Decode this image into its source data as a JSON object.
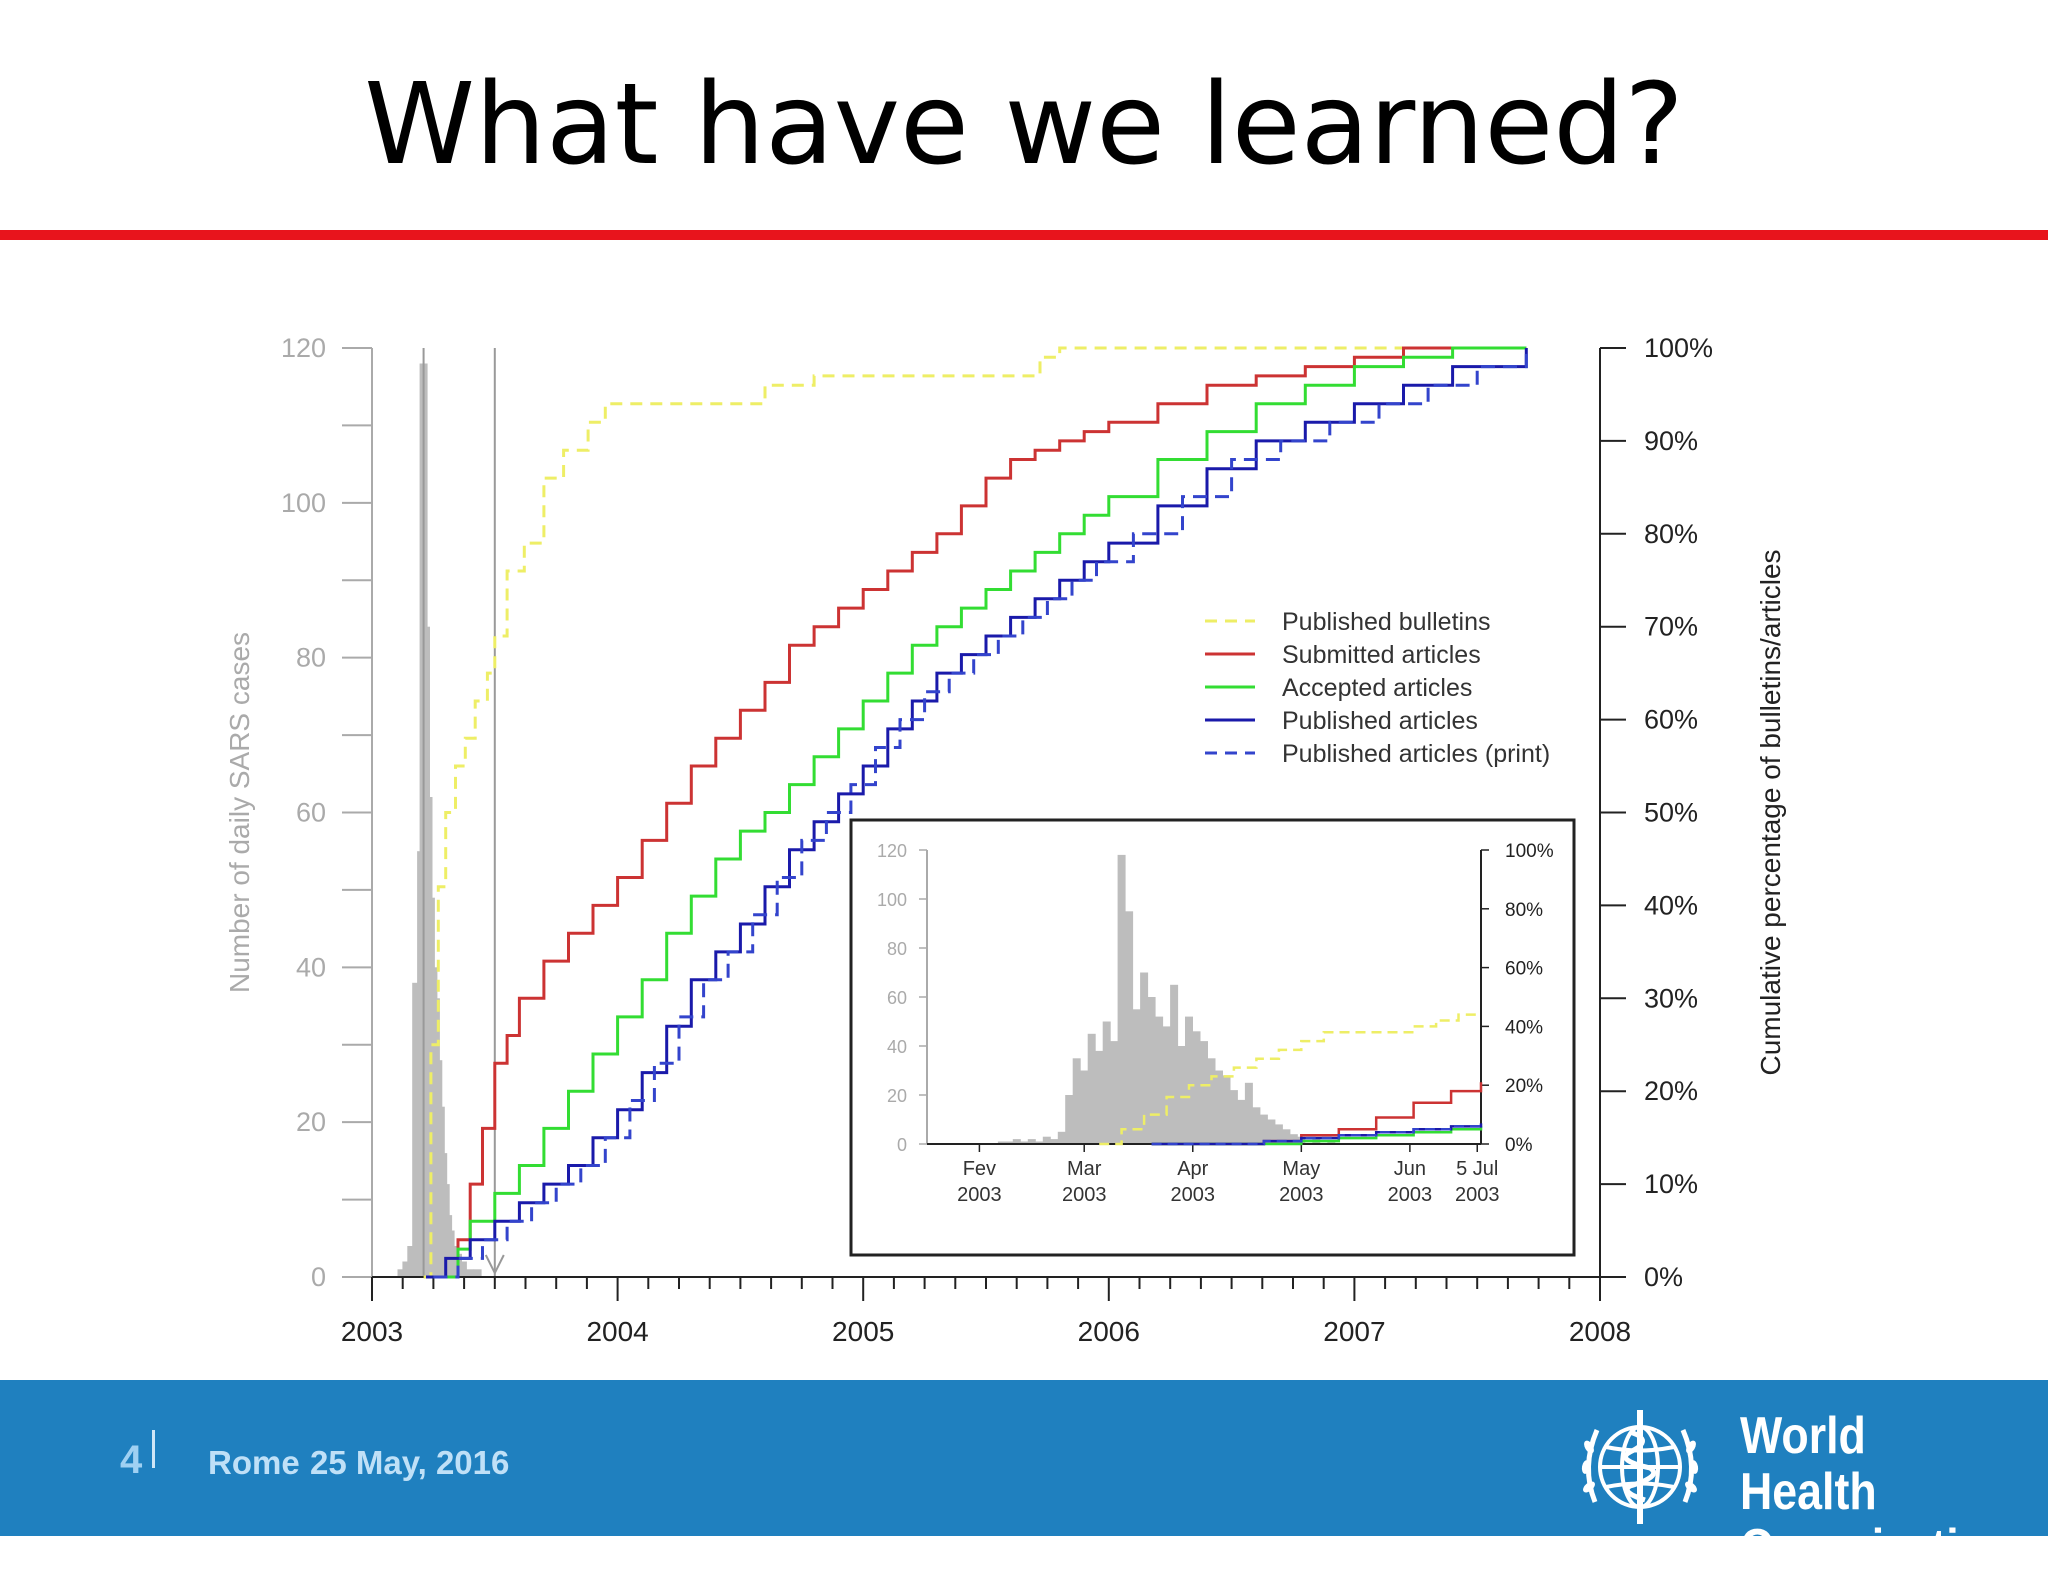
{
  "slide": {
    "title": "What have we learned?"
  },
  "footer": {
    "page_number": "4",
    "location": "Rome",
    "date": "25 May,  2016",
    "org_line1": "World Health",
    "org_line2": "Organization"
  },
  "colors": {
    "accent_red": "#e8141c",
    "footer_blue": "#1f80bf",
    "bulletins": "#eeee66",
    "submitted": "#cc3333",
    "accepted": "#33dd33",
    "published": "#1a1aaa",
    "published_print": "#3344cc",
    "cases": "#bdbdbd"
  },
  "chart_data": [
    {
      "type": "line",
      "x_ticks": [
        "2003",
        "2004",
        "2005",
        "2006",
        "2007",
        "2008"
      ],
      "xlim": [
        2003,
        2008
      ],
      "y_left": {
        "ylabel": "Number of daily SARS cases",
        "ticks": [
          "0",
          "20",
          "40",
          "60",
          "80",
          "100",
          "120"
        ],
        "ylim": [
          0,
          120
        ]
      },
      "y_right": {
        "ylabel": "Cumulative percentage of bulletins/articles",
        "ticks": [
          "0%",
          "10%",
          "20%",
          "30%",
          "40%",
          "50%",
          "60%",
          "70%",
          "80%",
          "90%",
          "100%"
        ],
        "ylim": [
          0,
          100
        ]
      },
      "vertical_markers": [
        2003.21,
        2003.5
      ],
      "cases_bars": {
        "x": [
          2003.12,
          2003.14,
          2003.16,
          2003.18,
          2003.19,
          2003.2,
          2003.21,
          2003.22,
          2003.23,
          2003.24,
          2003.25,
          2003.26,
          2003.27,
          2003.28,
          2003.29,
          2003.3,
          2003.31,
          2003.32,
          2003.33,
          2003.35,
          2003.37,
          2003.4,
          2003.43,
          2003.46
        ],
        "values": [
          1,
          2,
          4,
          38,
          36,
          55,
          118,
          84,
          62,
          49,
          40,
          36,
          28,
          22,
          16,
          12,
          8,
          6,
          4,
          3,
          2,
          1,
          1,
          0
        ]
      },
      "legend_position": "right",
      "series": [
        {
          "name": "Published bulletins",
          "style": "dashed",
          "x": [
            2003.21,
            2003.24,
            2003.27,
            2003.3,
            2003.34,
            2003.38,
            2003.42,
            2003.47,
            2003.5,
            2003.55,
            2003.62,
            2003.7,
            2003.78,
            2003.88,
            2003.95,
            2004.1,
            2004.3,
            2004.5,
            2004.6,
            2004.65,
            2004.8,
            2004.9,
            2005.2,
            2005.5,
            2005.65,
            2005.72,
            2005.8,
            2006.0,
            2006.5,
            2007.0,
            2007.5,
            2007.7
          ],
          "values": [
            0,
            25,
            42,
            50,
            55,
            58,
            62,
            65,
            69,
            76,
            79,
            86,
            89,
            92,
            94,
            94,
            94,
            94,
            96,
            96,
            97,
            97,
            97,
            97,
            97,
            99,
            100,
            100,
            100,
            100,
            100,
            100
          ]
        },
        {
          "name": "Submitted articles",
          "style": "solid",
          "x": [
            2003.3,
            2003.35,
            2003.4,
            2003.45,
            2003.5,
            2003.55,
            2003.6,
            2003.7,
            2003.8,
            2003.9,
            2004.0,
            2004.1,
            2004.2,
            2004.3,
            2004.4,
            2004.5,
            2004.6,
            2004.7,
            2004.8,
            2004.9,
            2005.0,
            2005.1,
            2005.2,
            2005.3,
            2005.4,
            2005.5,
            2005.6,
            2005.7,
            2005.8,
            2005.9,
            2006.0,
            2006.2,
            2006.4,
            2006.6,
            2006.8,
            2007.0,
            2007.2,
            2007.4,
            2007.7
          ],
          "values": [
            0,
            4,
            10,
            16,
            23,
            26,
            30,
            34,
            37,
            40,
            43,
            47,
            51,
            55,
            58,
            61,
            64,
            68,
            70,
            72,
            74,
            76,
            78,
            80,
            83,
            86,
            88,
            89,
            90,
            91,
            92,
            94,
            96,
            97,
            98,
            99,
            100,
            100,
            100
          ]
        },
        {
          "name": "Accepted articles",
          "style": "solid",
          "x": [
            2003.28,
            2003.35,
            2003.4,
            2003.5,
            2003.6,
            2003.7,
            2003.8,
            2003.9,
            2004.0,
            2004.1,
            2004.2,
            2004.3,
            2004.4,
            2004.5,
            2004.6,
            2004.7,
            2004.8,
            2004.9,
            2005.0,
            2005.1,
            2005.2,
            2005.3,
            2005.4,
            2005.5,
            2005.6,
            2005.7,
            2005.8,
            2005.9,
            2006.0,
            2006.2,
            2006.4,
            2006.6,
            2006.8,
            2007.0,
            2007.2,
            2007.4,
            2007.7
          ],
          "values": [
            0,
            3,
            6,
            9,
            12,
            16,
            20,
            24,
            28,
            32,
            37,
            41,
            45,
            48,
            50,
            53,
            56,
            59,
            62,
            65,
            68,
            70,
            72,
            74,
            76,
            78,
            80,
            82,
            84,
            88,
            91,
            94,
            96,
            98,
            99,
            100,
            100
          ]
        },
        {
          "name": "Published articles",
          "style": "solid",
          "x": [
            2003.22,
            2003.3,
            2003.4,
            2003.5,
            2003.6,
            2003.7,
            2003.8,
            2003.9,
            2004.0,
            2004.1,
            2004.2,
            2004.3,
            2004.4,
            2004.5,
            2004.6,
            2004.7,
            2004.8,
            2004.9,
            2005.0,
            2005.1,
            2005.2,
            2005.3,
            2005.4,
            2005.5,
            2005.6,
            2005.7,
            2005.8,
            2005.9,
            2006.0,
            2006.2,
            2006.4,
            2006.6,
            2006.8,
            2007.0,
            2007.2,
            2007.4,
            2007.7
          ],
          "values": [
            0,
            2,
            4,
            6,
            8,
            10,
            12,
            15,
            18,
            22,
            27,
            32,
            35,
            38,
            42,
            46,
            49,
            52,
            55,
            59,
            62,
            65,
            67,
            69,
            71,
            73,
            75,
            77,
            79,
            83,
            87,
            90,
            92,
            94,
            96,
            98,
            100
          ]
        },
        {
          "name": "Published articles (print)",
          "style": "dashed",
          "x": [
            2003.25,
            2003.35,
            2003.45,
            2003.55,
            2003.65,
            2003.75,
            2003.85,
            2003.95,
            2004.05,
            2004.15,
            2004.25,
            2004.35,
            2004.45,
            2004.55,
            2004.65,
            2004.75,
            2004.85,
            2004.95,
            2005.05,
            2005.15,
            2005.25,
            2005.35,
            2005.45,
            2005.55,
            2005.65,
            2005.75,
            2005.85,
            2005.95,
            2006.1,
            2006.3,
            2006.5,
            2006.7,
            2006.9,
            2007.1,
            2007.3,
            2007.5,
            2007.7
          ],
          "values": [
            0,
            2,
            4,
            6,
            8,
            10,
            12,
            15,
            19,
            23,
            28,
            32,
            35,
            39,
            43,
            47,
            50,
            53,
            57,
            60,
            63,
            65,
            67,
            69,
            71,
            73,
            75,
            77,
            80,
            84,
            88,
            90,
            92,
            94,
            96,
            98,
            100
          ]
        }
      ]
    },
    {
      "type": "line",
      "inset": true,
      "x_ticks": [
        {
          "line1": "Fev",
          "line2": "2003"
        },
        {
          "line1": "Mar",
          "line2": "2003"
        },
        {
          "line1": "Apr",
          "line2": "2003"
        },
        {
          "line1": "May",
          "line2": "2003"
        },
        {
          "line1": "Jun",
          "line2": "2003"
        },
        {
          "line1": "5 Jul",
          "line2": "2003"
        }
      ],
      "x_tick_days": [
        14,
        42,
        71,
        100,
        129,
        147
      ],
      "xlim": [
        0,
        148
      ],
      "y_left": {
        "ticks": [
          "0",
          "20",
          "40",
          "60",
          "80",
          "100",
          "120"
        ],
        "ylim": [
          0,
          120
        ]
      },
      "y_right": {
        "ticks": [
          "0%",
          "20%",
          "40%",
          "60%",
          "80%",
          "100%"
        ],
        "ylim": [
          0,
          100
        ]
      },
      "cases_bars": {
        "x": [
          20,
          22,
          24,
          26,
          28,
          30,
          32,
          34,
          36,
          38,
          40,
          42,
          44,
          46,
          48,
          50,
          52,
          54,
          56,
          58,
          60,
          62,
          64,
          66,
          68,
          70,
          72,
          74,
          76,
          78,
          80,
          82,
          84,
          86,
          88,
          90,
          92,
          94,
          96,
          98,
          100,
          104,
          108,
          112
        ],
        "values": [
          1,
          1,
          2,
          1,
          2,
          1,
          3,
          2,
          5,
          20,
          35,
          30,
          45,
          38,
          50,
          42,
          118,
          95,
          55,
          70,
          60,
          52,
          48,
          65,
          40,
          52,
          46,
          42,
          35,
          30,
          28,
          22,
          18,
          25,
          15,
          12,
          10,
          8,
          6,
          4,
          3,
          2,
          1,
          0
        ]
      },
      "series": [
        {
          "name": "Published bulletins",
          "style": "dashed",
          "x": [
            46,
            52,
            58,
            64,
            70,
            76,
            82,
            88,
            94,
            100,
            106,
            112,
            118,
            124,
            130,
            136,
            142,
            148
          ],
          "values": [
            0,
            5,
            10,
            16,
            20,
            23,
            26,
            29,
            32,
            35,
            38,
            38,
            38,
            38,
            40,
            42,
            44,
            44
          ]
        },
        {
          "name": "Submitted articles",
          "style": "solid",
          "x": [
            60,
            80,
            90,
            100,
            110,
            120,
            130,
            140,
            148
          ],
          "values": [
            0,
            0,
            1,
            3,
            5,
            9,
            14,
            18,
            21
          ]
        },
        {
          "name": "Accepted articles",
          "style": "solid",
          "x": [
            60,
            90,
            100,
            110,
            120,
            130,
            140,
            148
          ],
          "values": [
            0,
            0,
            1,
            2,
            3,
            4,
            5,
            6
          ]
        },
        {
          "name": "Published articles",
          "style": "solid",
          "x": [
            60,
            90,
            100,
            110,
            120,
            130,
            140,
            148
          ],
          "values": [
            0,
            1,
            2,
            3,
            4,
            5,
            6,
            7
          ]
        },
        {
          "name": "Published articles (print)",
          "style": "dashed",
          "x": [
            60,
            90,
            100,
            110,
            120,
            130,
            140,
            148
          ],
          "values": [
            0,
            1,
            2,
            3,
            4,
            5,
            6,
            7
          ]
        }
      ]
    }
  ]
}
